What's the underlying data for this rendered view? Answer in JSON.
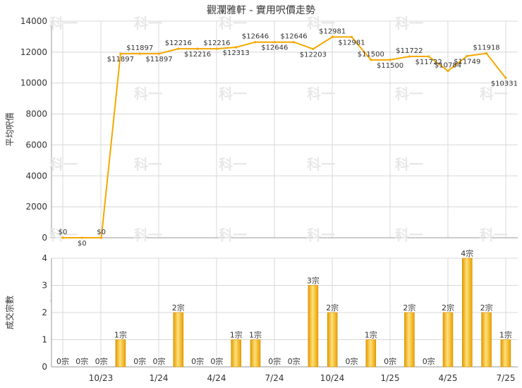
{
  "chart_data": [
    {
      "type": "line",
      "title": "觀瀾雅軒 - 實用呎價走勢",
      "ylabel": "平均呎價",
      "ylim": [
        0,
        14000
      ],
      "yticks": [
        0,
        2000,
        4000,
        6000,
        8000,
        10000,
        12000,
        14000
      ],
      "color": "#f5a800",
      "grid": true,
      "points": [
        {
          "label": "$0",
          "value": 0
        },
        {
          "label": "$0",
          "value": 0
        },
        {
          "label": "$0",
          "value": 0
        },
        {
          "label": "$11897",
          "value": 11897
        },
        {
          "label": "$11897",
          "value": 11897
        },
        {
          "label": "$11897",
          "value": 11897
        },
        {
          "label": "$12216",
          "value": 12216
        },
        {
          "label": "$12216",
          "value": 12216
        },
        {
          "label": "$12216",
          "value": 12216
        },
        {
          "label": "$12313",
          "value": 12313
        },
        {
          "label": "$12646",
          "value": 12646
        },
        {
          "label": "$12646",
          "value": 12646
        },
        {
          "label": "$12646",
          "value": 12646
        },
        {
          "label": "$12203",
          "value": 12203
        },
        {
          "label": "$12981",
          "value": 12981
        },
        {
          "label": "$12981",
          "value": 12981
        },
        {
          "label": "$11500",
          "value": 11500
        },
        {
          "label": "$11500",
          "value": 11500
        },
        {
          "label": "$11722",
          "value": 11722
        },
        {
          "label": "$11722",
          "value": 11722
        },
        {
          "label": "$10784",
          "value": 10784
        },
        {
          "label": "$11749",
          "value": 11749
        },
        {
          "label": "$11918",
          "value": 11918
        },
        {
          "label": "$10331",
          "value": 10331
        }
      ]
    },
    {
      "type": "bar",
      "ylabel": "成交宗數",
      "ylim": [
        0,
        4
      ],
      "yticks": [
        0,
        1,
        2,
        3,
        4
      ],
      "grid": true,
      "x_tick_labels": [
        "10/23",
        "1/24",
        "4/24",
        "7/24",
        "10/24",
        "1/25",
        "4/25",
        "7/25"
      ],
      "values": [
        0,
        0,
        0,
        1,
        0,
        0,
        2,
        0,
        0,
        1,
        1,
        0,
        0,
        3,
        2,
        0,
        1,
        0,
        2,
        0,
        2,
        4,
        2,
        1
      ],
      "labels": [
        "0宗",
        "0宗",
        "0宗",
        "1宗",
        "0宗",
        "0宗",
        "2宗",
        "0宗",
        "0宗",
        "1宗",
        "1宗",
        "0宗",
        "0宗",
        "3宗",
        "2宗",
        "0宗",
        "1宗",
        "0宗",
        "2宗",
        "0宗",
        "2宗",
        "4宗",
        "2宗",
        "1宗"
      ]
    }
  ],
  "watermark": "科一"
}
